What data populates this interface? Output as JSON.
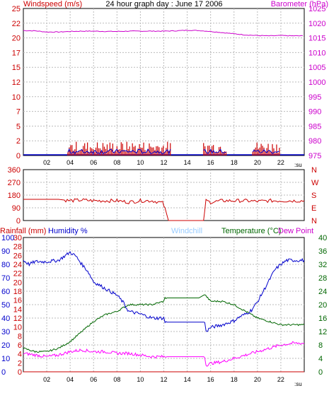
{
  "colors": {
    "wind": "#cc0000",
    "wind_avg": "#0000cc",
    "barometer": "#cc00cc",
    "direction": "#cc0000",
    "rain": "#cc0000",
    "humidity": "#0000cc",
    "windchill": "#99ccff",
    "temperature": "#006600",
    "dewpoint": "#cc00cc",
    "dew_line": "#ff00ff"
  },
  "chart_data": [
    {
      "type": "line",
      "title": "24 hour graph day : June 17 2006",
      "ylabel": "Windspeed (m/s)",
      "y2label": "Barometer (hPa)",
      "xlim": [
        0,
        24
      ],
      "ylim": [
        0,
        25
      ],
      "y2lim": [
        975,
        1025
      ],
      "x_ticks": [
        "02",
        "04",
        "06",
        "08",
        "10",
        "12",
        "14",
        "16",
        "18",
        "20",
        "22"
      ],
      "x_unit": ":su",
      "y_ticks": [
        "0",
        "2",
        "5",
        "7",
        "10",
        "12",
        "15",
        "17",
        "20",
        "22",
        "25"
      ],
      "y2_ticks": [
        "975",
        "980",
        "985",
        "990",
        "995",
        "1000",
        "1005",
        "1010",
        "1015",
        "1020",
        "1025"
      ],
      "grid": true,
      "series": [
        {
          "name": "Barometer (hPa)",
          "axis": "y2",
          "x": [
            0,
            1,
            2,
            3,
            4,
            5,
            6,
            7,
            8,
            9,
            10,
            11,
            12,
            13,
            14,
            15,
            16,
            17,
            18,
            19,
            20,
            21,
            22,
            23,
            24
          ],
          "y": [
            1017.5,
            1017.4,
            1017.0,
            1017.0,
            1017.2,
            1017.3,
            1017.3,
            1017.2,
            1017.2,
            1017.3,
            1017.3,
            1017.3,
            1017.3,
            1017.4,
            1017.6,
            1017.5,
            1017.2,
            1016.8,
            1016.4,
            1016.0,
            1015.8,
            1015.7,
            1015.8,
            1015.7,
            1015.7
          ]
        },
        {
          "name": "Windspeed (m/s)",
          "axis": "y",
          "bursts": [
            [
              3.8,
              12.6
            ],
            [
              15.4,
              17.4
            ],
            [
              19.6,
              22.0
            ]
          ],
          "peak": 2.2,
          "avg": 0.9
        }
      ]
    },
    {
      "type": "line",
      "ylim": [
        0,
        360
      ],
      "y_ticks": [
        "0",
        "90",
        "180",
        "270",
        "360"
      ],
      "y2_ticks": [
        "N",
        "E",
        "S",
        "W",
        "N"
      ],
      "xlim": [
        0,
        24
      ],
      "series": [
        {
          "name": "Wind direction",
          "x": [
            0,
            2,
            3,
            4,
            5,
            6,
            7,
            8,
            9,
            10,
            11,
            11.9,
            12.1,
            12.4,
            14.5,
            15.4,
            15.6,
            16,
            17,
            18,
            19,
            20,
            21,
            22,
            23,
            24
          ],
          "y": [
            150,
            150,
            150,
            140,
            145,
            140,
            140,
            140,
            130,
            140,
            140,
            125,
            90,
            0,
            0,
            0,
            140,
            130,
            140,
            140,
            140,
            135,
            140,
            140,
            140,
            140
          ]
        }
      ]
    },
    {
      "type": "line",
      "ylabel": "Rainfall (mm)",
      "labels": [
        "Rainfall (mm)",
        "Humidity %",
        "Windchill",
        "Temperature (°C)",
        "Dew Point"
      ],
      "xlim": [
        0,
        24
      ],
      "rain_ticks": [
        "0",
        "2",
        "4",
        "6",
        "8",
        "10",
        "12",
        "14",
        "16",
        "18",
        "20",
        "22",
        "24",
        "26",
        "28",
        "30"
      ],
      "humidity_ticks": [
        "0",
        "10",
        "20",
        "30",
        "40",
        "50",
        "60",
        "70",
        "80",
        "90",
        "100"
      ],
      "temp_ticks": [
        "0",
        "4",
        "8",
        "12",
        "16",
        "20",
        "24",
        "28",
        "32",
        "36",
        "40"
      ],
      "series": [
        {
          "name": "Humidity %",
          "axis": "humidity",
          "x": [
            0,
            0.5,
            1,
            2,
            3,
            3.5,
            4,
            4.5,
            5,
            5.5,
            6,
            7,
            8,
            8.5,
            9,
            10,
            11,
            12,
            12.1,
            14,
            15,
            15.5,
            15.6,
            16,
            17,
            18,
            18.5,
            19,
            19.5,
            20,
            20.5,
            21,
            21.5,
            22,
            22.5,
            23,
            24
          ],
          "y": [
            83,
            80,
            82,
            82,
            83,
            86,
            89,
            86,
            80,
            75,
            67,
            62,
            57,
            52,
            45,
            43,
            40,
            40,
            37,
            37,
            37,
            37,
            30,
            33,
            35,
            38,
            41,
            43,
            46,
            52,
            60,
            68,
            76,
            80,
            83,
            83,
            83
          ]
        },
        {
          "name": "Temperature (°C)",
          "axis": "temp",
          "x": [
            0,
            1,
            2,
            3,
            4,
            5,
            6,
            7,
            8,
            9,
            10,
            11,
            12,
            12.1,
            14,
            15,
            15.5,
            16,
            17,
            18,
            19,
            20,
            21,
            22,
            23,
            24
          ],
          "y": [
            7,
            6,
            6,
            7,
            9,
            12,
            15,
            17,
            18,
            20,
            20,
            20,
            21,
            22,
            22,
            22,
            23,
            21,
            21,
            20,
            18,
            16,
            15,
            14,
            14,
            14
          ]
        },
        {
          "name": "Dew Point",
          "axis": "temp",
          "x": [
            0,
            1,
            2,
            3,
            4,
            5,
            6,
            7,
            8,
            9,
            10,
            11,
            12,
            12.1,
            14,
            15,
            15.5,
            15.6,
            16,
            17,
            18,
            19,
            20,
            21,
            22,
            23,
            24
          ],
          "y": [
            5.5,
            5,
            4.5,
            5,
            6,
            6.5,
            6,
            6,
            5.5,
            5.5,
            5,
            4.5,
            4.5,
            4.5,
            4.5,
            4.5,
            4.5,
            2,
            2.5,
            3,
            4,
            5,
            6,
            7,
            8,
            8.5,
            8.5
          ]
        },
        {
          "name": "Rainfall (mm)",
          "axis": "rain",
          "x": [
            0,
            24
          ],
          "y": [
            0,
            0
          ]
        }
      ]
    }
  ]
}
